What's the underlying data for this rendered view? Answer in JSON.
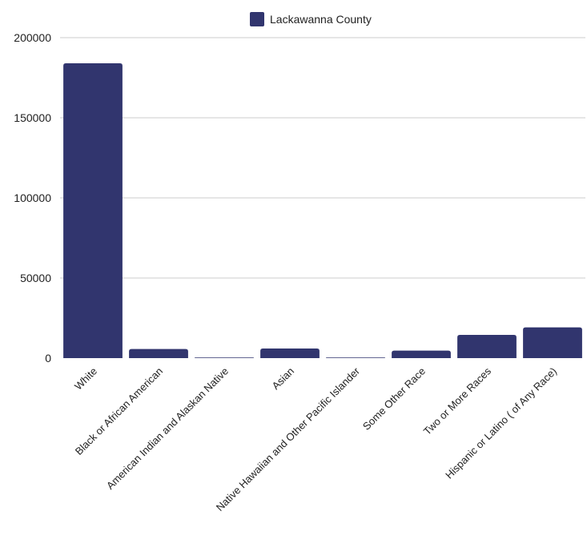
{
  "chart_data": {
    "type": "bar",
    "categories": [
      "White",
      "Black or African American",
      "American Indian and Alaskan Native",
      "Asian",
      "Native Hawaiian and Other Pacific Islander",
      "Some Other Race",
      "Two or More Races",
      "Hispanic or Latino ( of Any Race)"
    ],
    "series": [
      {
        "name": "Lackawanna County",
        "values": [
          184000,
          5700,
          300,
          6000,
          150,
          4700,
          14500,
          19200
        ]
      }
    ],
    "yticks": [
      "0",
      "50000",
      "100000",
      "150000",
      "200000"
    ],
    "ylim": [
      0,
      200000
    ],
    "title": "",
    "xlabel": "",
    "ylabel": "",
    "grid": true,
    "legend": "top-center",
    "colors": {
      "bar": "#31356e",
      "grid": "#cccccc",
      "text": "#222222"
    }
  }
}
